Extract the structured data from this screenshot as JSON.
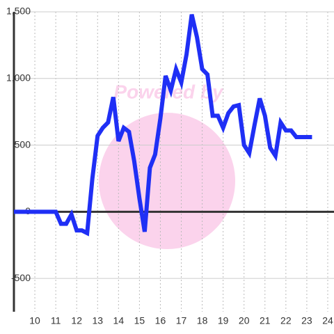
{
  "chart_data": {
    "type": "line",
    "watermark": "Powered by",
    "x": [
      9,
      9.25,
      9.5,
      9.75,
      10,
      10.25,
      10.5,
      10.75,
      11,
      11.25,
      11.5,
      11.75,
      12,
      12.25,
      12.5,
      12.75,
      13,
      13.25,
      13.5,
      13.75,
      14,
      14.25,
      14.5,
      14.75,
      15,
      15.25,
      15.5,
      15.75,
      16,
      16.25,
      16.5,
      16.75,
      17,
      17.25,
      17.5,
      17.75,
      18,
      18.25,
      18.5,
      18.75,
      19,
      19.25,
      19.5,
      19.75,
      20,
      20.25,
      20.5,
      20.75,
      21,
      21.25,
      21.5,
      21.75,
      22,
      22.25,
      22.5,
      22.75,
      23,
      23.25
    ],
    "series": [
      {
        "color": "#1f2ff5",
        "values": [
          0,
          0,
          0,
          0,
          0,
          0,
          0,
          0,
          0,
          -90,
          -90,
          -20,
          -140,
          -140,
          -160,
          250,
          570,
          630,
          670,
          860,
          530,
          630,
          600,
          380,
          100,
          -150,
          330,
          430,
          700,
          1020,
          910,
          1070,
          970,
          1180,
          1480,
          1310,
          1070,
          1030,
          720,
          720,
          630,
          740,
          790,
          800,
          500,
          440,
          650,
          850,
          720,
          480,
          420,
          670,
          610,
          610,
          560,
          560,
          560,
          560
        ]
      }
    ],
    "xlim": [
      9,
      24.3
    ],
    "xticks": [
      10,
      11,
      12,
      13,
      14,
      15,
      16,
      17,
      18,
      19,
      20,
      21,
      22,
      23,
      24
    ],
    "ylim": [
      -750,
      1500
    ],
    "yticks": [
      -500,
      0,
      500,
      {
        "value": 1000,
        "label": "1,000"
      },
      {
        "value": 1500,
        "label": "1,500"
      }
    ],
    "grid": true
  }
}
